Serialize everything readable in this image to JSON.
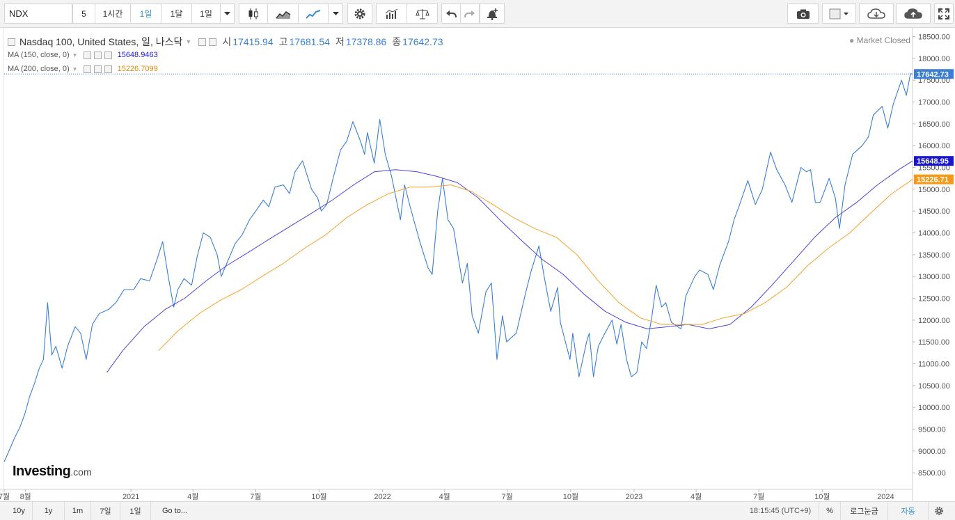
{
  "toolbar": {
    "symbol": "NDX",
    "interval_buttons": [
      "5",
      "1시간",
      "1일",
      "1달",
      "1일"
    ],
    "active_interval": "1일",
    "icons": [
      "candlestick-icon",
      "area-chart-icon",
      "line-chart-icon",
      "chevron-down-icon",
      "gear-icon",
      "indicators-icon",
      "scale-icon",
      "undo-icon",
      "redo-icon",
      "alert-bell-icon",
      "camera-icon",
      "color-square-icon",
      "cloud-download-icon",
      "cloud-upload-icon",
      "fullscreen-icon"
    ]
  },
  "legend": {
    "title": "Nasdaq 100, United States, 일, 나스닥",
    "ohlc": [
      {
        "key": "시",
        "value": "17415.94"
      },
      {
        "key": "고",
        "value": "17681.54"
      },
      {
        "key": "저",
        "value": "17378.86"
      },
      {
        "key": "종",
        "value": "17642.73"
      }
    ],
    "ma150_label": "MA (150, close, 0)",
    "ma150_value": "15648.9463",
    "ma200_label": "MA (200, close, 0)",
    "ma200_value": "15226.7099",
    "market_status": "Market Closed"
  },
  "logo": {
    "brand": "Investing",
    "suffix": ".com"
  },
  "bottombar": {
    "ranges": [
      "10y",
      "1y",
      "1m",
      "7일",
      "1일"
    ],
    "goto": "Go to...",
    "time": "18:15:45 (UTC+9)",
    "percent": "%",
    "log": "로그눈금",
    "auto": "자동"
  },
  "colors": {
    "price": "#3b7fd0",
    "ma150": "#4b44d6",
    "ma200": "#f5a22a",
    "last_price_tag": "#3b7fd0",
    "ma150_tag": "#1a17c7",
    "ma200_tag": "#f59a18"
  },
  "chart_data": {
    "type": "line",
    "yticks": [
      8500,
      9000,
      9500,
      10000,
      10500,
      11000,
      11500,
      12000,
      12500,
      13000,
      13500,
      14000,
      14500,
      15000,
      15500,
      16000,
      16500,
      17000,
      17500,
      18000,
      18500
    ],
    "ylim": [
      8120,
      18700
    ],
    "xlim": [
      "2020-07-01",
      "2024-02-09"
    ],
    "xticks": [
      {
        "date": "2020-07-01",
        "label": "7월"
      },
      {
        "date": "2020-08-01",
        "label": "8월"
      },
      {
        "date": "2021-01-01",
        "label": "2021"
      },
      {
        "date": "2021-04-01",
        "label": "4월"
      },
      {
        "date": "2021-07-01",
        "label": "7월"
      },
      {
        "date": "2021-10-01",
        "label": "10월"
      },
      {
        "date": "2022-01-01",
        "label": "2022"
      },
      {
        "date": "2022-04-01",
        "label": "4월"
      },
      {
        "date": "2022-07-01",
        "label": "7월"
      },
      {
        "date": "2022-10-01",
        "label": "10월"
      },
      {
        "date": "2023-01-01",
        "label": "2023"
      },
      {
        "date": "2023-04-01",
        "label": "4월"
      },
      {
        "date": "2023-07-01",
        "label": "7월"
      },
      {
        "date": "2023-10-01",
        "label": "10월"
      },
      {
        "date": "2024-01-01",
        "label": "2024"
      }
    ],
    "price_tags": [
      {
        "label": "17642.73",
        "value": 17642.73,
        "color": "#3b7fd0"
      },
      {
        "label": "15648.95",
        "value": 15648.95,
        "color": "#1a17c7"
      },
      {
        "label": "15226.71",
        "value": 15226.71,
        "color": "#f59a18"
      }
    ],
    "last_price_line": 17642.73,
    "series": [
      {
        "key": "price",
        "color": "#3b7fd0",
        "points": [
          [
            "2020-07-01",
            8750
          ],
          [
            "2020-07-08",
            9000
          ],
          [
            "2020-07-16",
            9300
          ],
          [
            "2020-07-24",
            9550
          ],
          [
            "2020-07-31",
            9850
          ],
          [
            "2020-08-07",
            10250
          ],
          [
            "2020-08-14",
            10550
          ],
          [
            "2020-08-21",
            10900
          ],
          [
            "2020-08-27",
            11100
          ],
          [
            "2020-09-02",
            12400
          ],
          [
            "2020-09-08",
            11200
          ],
          [
            "2020-09-14",
            11400
          ],
          [
            "2020-09-23",
            10900
          ],
          [
            "2020-10-01",
            11400
          ],
          [
            "2020-10-12",
            11850
          ],
          [
            "2020-10-20",
            11700
          ],
          [
            "2020-10-28",
            11100
          ],
          [
            "2020-11-06",
            11900
          ],
          [
            "2020-11-16",
            12150
          ],
          [
            "2020-11-30",
            12250
          ],
          [
            "2020-12-10",
            12400
          ],
          [
            "2020-12-22",
            12700
          ],
          [
            "2021-01-05",
            12700
          ],
          [
            "2021-01-15",
            12950
          ],
          [
            "2021-01-28",
            12900
          ],
          [
            "2021-02-08",
            13400
          ],
          [
            "2021-02-16",
            13800
          ],
          [
            "2021-02-24",
            13000
          ],
          [
            "2021-03-04",
            12300
          ],
          [
            "2021-03-10",
            12700
          ],
          [
            "2021-03-19",
            12950
          ],
          [
            "2021-03-30",
            12800
          ],
          [
            "2021-04-07",
            13450
          ],
          [
            "2021-04-16",
            14000
          ],
          [
            "2021-04-26",
            13900
          ],
          [
            "2021-05-06",
            13500
          ],
          [
            "2021-05-12",
            13000
          ],
          [
            "2021-05-20",
            13300
          ],
          [
            "2021-06-01",
            13750
          ],
          [
            "2021-06-11",
            13950
          ],
          [
            "2021-06-22",
            14300
          ],
          [
            "2021-07-01",
            14500
          ],
          [
            "2021-07-12",
            14750
          ],
          [
            "2021-07-20",
            14600
          ],
          [
            "2021-07-29",
            15050
          ],
          [
            "2021-08-10",
            15100
          ],
          [
            "2021-08-19",
            14900
          ],
          [
            "2021-08-27",
            15400
          ],
          [
            "2021-09-07",
            15650
          ],
          [
            "2021-09-20",
            15000
          ],
          [
            "2021-09-29",
            14800
          ],
          [
            "2021-10-04",
            14500
          ],
          [
            "2021-10-12",
            14650
          ],
          [
            "2021-10-22",
            15300
          ],
          [
            "2021-11-01",
            15900
          ],
          [
            "2021-11-10",
            16100
          ],
          [
            "2021-11-19",
            16550
          ],
          [
            "2021-11-30",
            16100
          ],
          [
            "2021-12-06",
            15800
          ],
          [
            "2021-12-10",
            16300
          ],
          [
            "2021-12-20",
            15600
          ],
          [
            "2021-12-28",
            16600
          ],
          [
            "2022-01-05",
            15800
          ],
          [
            "2022-01-14",
            15300
          ],
          [
            "2022-01-27",
            14300
          ],
          [
            "2022-02-02",
            15100
          ],
          [
            "2022-02-10",
            14600
          ],
          [
            "2022-02-24",
            13800
          ],
          [
            "2022-03-08",
            13200
          ],
          [
            "2022-03-14",
            13050
          ],
          [
            "2022-03-22",
            14500
          ],
          [
            "2022-03-29",
            15250
          ],
          [
            "2022-04-06",
            14300
          ],
          [
            "2022-04-14",
            14100
          ],
          [
            "2022-04-27",
            12850
          ],
          [
            "2022-05-04",
            13300
          ],
          [
            "2022-05-11",
            12100
          ],
          [
            "2022-05-20",
            11700
          ],
          [
            "2022-05-31",
            12650
          ],
          [
            "2022-06-08",
            12850
          ],
          [
            "2022-06-16",
            11100
          ],
          [
            "2022-06-24",
            12100
          ],
          [
            "2022-06-30",
            11500
          ],
          [
            "2022-07-14",
            11700
          ],
          [
            "2022-07-28",
            12650
          ],
          [
            "2022-08-05",
            13150
          ],
          [
            "2022-08-16",
            13700
          ],
          [
            "2022-08-24",
            12950
          ],
          [
            "2022-09-02",
            12200
          ],
          [
            "2022-09-12",
            12750
          ],
          [
            "2022-09-16",
            11950
          ],
          [
            "2022-09-30",
            11100
          ],
          [
            "2022-10-04",
            11700
          ],
          [
            "2022-10-13",
            10700
          ],
          [
            "2022-10-24",
            11500
          ],
          [
            "2022-10-28",
            11700
          ],
          [
            "2022-11-03",
            10700
          ],
          [
            "2022-11-10",
            11400
          ],
          [
            "2022-11-18",
            11650
          ],
          [
            "2022-11-30",
            12000
          ],
          [
            "2022-12-07",
            11450
          ],
          [
            "2022-12-13",
            11900
          ],
          [
            "2022-12-21",
            11100
          ],
          [
            "2022-12-28",
            10700
          ],
          [
            "2023-01-05",
            10800
          ],
          [
            "2023-01-12",
            11500
          ],
          [
            "2023-01-19",
            11350
          ],
          [
            "2023-01-27",
            12100
          ],
          [
            "2023-02-02",
            12800
          ],
          [
            "2023-02-10",
            12300
          ],
          [
            "2023-02-16",
            12400
          ],
          [
            "2023-02-24",
            11950
          ],
          [
            "2023-03-10",
            11800
          ],
          [
            "2023-03-17",
            12550
          ],
          [
            "2023-03-30",
            13000
          ],
          [
            "2023-04-06",
            13150
          ],
          [
            "2023-04-18",
            13050
          ],
          [
            "2023-04-26",
            12700
          ],
          [
            "2023-05-05",
            13250
          ],
          [
            "2023-05-18",
            13800
          ],
          [
            "2023-05-26",
            14300
          ],
          [
            "2023-06-02",
            14600
          ],
          [
            "2023-06-15",
            15200
          ],
          [
            "2023-06-26",
            14650
          ],
          [
            "2023-07-06",
            15000
          ],
          [
            "2023-07-18",
            15850
          ],
          [
            "2023-07-27",
            15450
          ],
          [
            "2023-08-08",
            15100
          ],
          [
            "2023-08-18",
            14700
          ],
          [
            "2023-08-31",
            15500
          ],
          [
            "2023-09-08",
            15400
          ],
          [
            "2023-09-14",
            15450
          ],
          [
            "2023-09-21",
            14700
          ],
          [
            "2023-09-28",
            14700
          ],
          [
            "2023-10-11",
            15250
          ],
          [
            "2023-10-20",
            14800
          ],
          [
            "2023-10-26",
            14100
          ],
          [
            "2023-11-03",
            15100
          ],
          [
            "2023-11-14",
            15800
          ],
          [
            "2023-11-28",
            16000
          ],
          [
            "2023-12-07",
            16200
          ],
          [
            "2023-12-14",
            16700
          ],
          [
            "2023-12-27",
            16900
          ],
          [
            "2024-01-04",
            16400
          ],
          [
            "2024-01-12",
            16950
          ],
          [
            "2024-01-24",
            17500
          ],
          [
            "2024-01-31",
            17150
          ],
          [
            "2024-02-06",
            17650
          ],
          [
            "2024-02-09",
            17642.73
          ]
        ]
      },
      {
        "key": "ma150",
        "color": "#4b44d6",
        "points": [
          [
            "2020-11-27",
            10800
          ],
          [
            "2020-12-20",
            11300
          ],
          [
            "2021-01-20",
            11850
          ],
          [
            "2021-02-20",
            12250
          ],
          [
            "2021-03-20",
            12500
          ],
          [
            "2021-04-20",
            12900
          ],
          [
            "2021-05-20",
            13250
          ],
          [
            "2021-06-20",
            13550
          ],
          [
            "2021-07-20",
            13850
          ],
          [
            "2021-08-20",
            14150
          ],
          [
            "2021-09-20",
            14450
          ],
          [
            "2021-10-20",
            14750
          ],
          [
            "2021-11-20",
            15100
          ],
          [
            "2021-12-20",
            15400
          ],
          [
            "2022-01-20",
            15450
          ],
          [
            "2022-02-20",
            15400
          ],
          [
            "2022-03-20",
            15300
          ],
          [
            "2022-04-20",
            15150
          ],
          [
            "2022-05-20",
            14800
          ],
          [
            "2022-06-20",
            14300
          ],
          [
            "2022-07-20",
            13850
          ],
          [
            "2022-08-20",
            13400
          ],
          [
            "2022-09-20",
            13050
          ],
          [
            "2022-10-20",
            12600
          ],
          [
            "2022-11-20",
            12200
          ],
          [
            "2022-12-20",
            11950
          ],
          [
            "2023-01-20",
            11800
          ],
          [
            "2023-02-20",
            11850
          ],
          [
            "2023-03-20",
            11900
          ],
          [
            "2023-04-20",
            11800
          ],
          [
            "2023-05-20",
            11900
          ],
          [
            "2023-06-20",
            12300
          ],
          [
            "2023-07-20",
            12800
          ],
          [
            "2023-08-20",
            13350
          ],
          [
            "2023-09-20",
            13900
          ],
          [
            "2023-10-20",
            14350
          ],
          [
            "2023-11-20",
            14700
          ],
          [
            "2023-12-20",
            15100
          ],
          [
            "2024-01-20",
            15450
          ],
          [
            "2024-02-09",
            15648.95
          ]
        ]
      },
      {
        "key": "ma200",
        "color": "#f5a22a",
        "points": [
          [
            "2021-02-10",
            11300
          ],
          [
            "2021-03-10",
            11750
          ],
          [
            "2021-04-10",
            12150
          ],
          [
            "2021-05-10",
            12450
          ],
          [
            "2021-06-10",
            12700
          ],
          [
            "2021-07-10",
            13000
          ],
          [
            "2021-08-10",
            13300
          ],
          [
            "2021-09-10",
            13650
          ],
          [
            "2021-10-10",
            13950
          ],
          [
            "2021-11-10",
            14350
          ],
          [
            "2021-12-10",
            14650
          ],
          [
            "2022-01-10",
            14900
          ],
          [
            "2022-02-10",
            15050
          ],
          [
            "2022-03-10",
            15050
          ],
          [
            "2022-04-10",
            15100
          ],
          [
            "2022-05-10",
            14950
          ],
          [
            "2022-06-10",
            14650
          ],
          [
            "2022-07-10",
            14350
          ],
          [
            "2022-08-10",
            14100
          ],
          [
            "2022-09-10",
            13900
          ],
          [
            "2022-10-10",
            13500
          ],
          [
            "2022-11-10",
            12900
          ],
          [
            "2022-12-10",
            12400
          ],
          [
            "2023-01-10",
            12050
          ],
          [
            "2023-02-10",
            11900
          ],
          [
            "2023-03-10",
            11900
          ],
          [
            "2023-04-10",
            11900
          ],
          [
            "2023-05-10",
            12050
          ],
          [
            "2023-06-10",
            12150
          ],
          [
            "2023-07-10",
            12400
          ],
          [
            "2023-08-10",
            12750
          ],
          [
            "2023-09-10",
            13250
          ],
          [
            "2023-10-10",
            13650
          ],
          [
            "2023-11-10",
            14000
          ],
          [
            "2023-12-10",
            14450
          ],
          [
            "2024-01-10",
            14900
          ],
          [
            "2024-02-09",
            15226.71
          ]
        ]
      }
    ]
  }
}
